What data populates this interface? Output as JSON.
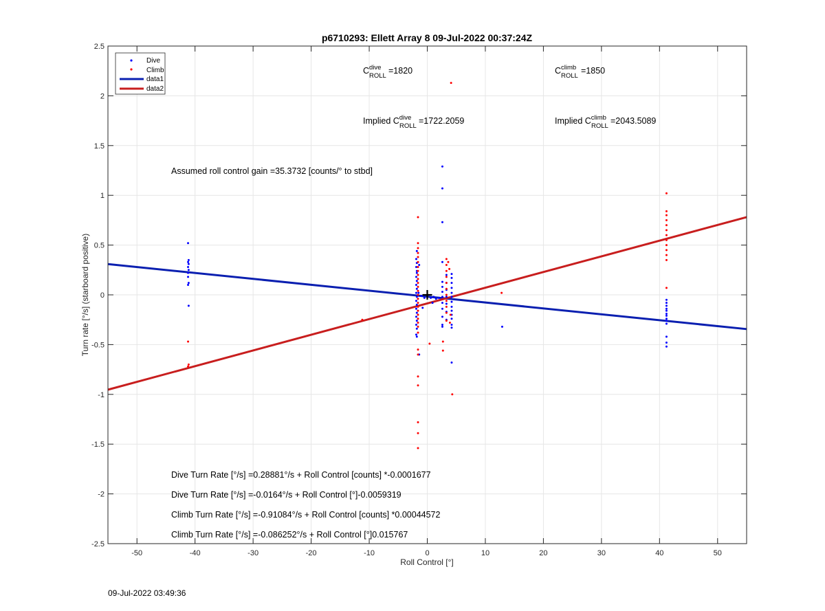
{
  "chart_data": {
    "type": "scatter",
    "title": "p6710293: Ellett Array 8 09-Jul-2022 00:37:24Z",
    "xlabel": "Roll Control [°]",
    "ylabel": "Turn rate [°/s] (starboard positive)",
    "xlim": [
      -55,
      55
    ],
    "ylim": [
      -2.5,
      2.5
    ],
    "xticks": [
      -50,
      -40,
      -30,
      -20,
      -10,
      0,
      10,
      20,
      30,
      40,
      50
    ],
    "yticks": [
      -2.5,
      -2,
      -1.5,
      -1,
      -0.5,
      0,
      0.5,
      1,
      1.5,
      2,
      2.5
    ],
    "grid": true,
    "legend_position": "top-left",
    "legend": [
      {
        "label": "Dive",
        "marker": "dot",
        "color": "#0000ff"
      },
      {
        "label": "Climb",
        "marker": "dot",
        "color": "#ff0000"
      },
      {
        "label": "data1",
        "marker": "line",
        "color": "#0a1fb0"
      },
      {
        "label": "data2",
        "marker": "line",
        "color": "#c81e1e"
      }
    ],
    "series": [
      {
        "name": "Dive",
        "type": "scatter",
        "color": "#0000ff",
        "points": [
          [
            -41.2,
            0.52
          ],
          [
            -41.1,
            0.35
          ],
          [
            -41.2,
            0.33
          ],
          [
            -41.1,
            0.31
          ],
          [
            -41.2,
            0.28
          ],
          [
            -41.1,
            0.25
          ],
          [
            -41.2,
            0.22
          ],
          [
            -41.2,
            0.18
          ],
          [
            -41.1,
            0.12
          ],
          [
            -41.2,
            0.1
          ],
          [
            -41.1,
            -0.11
          ],
          [
            -1.8,
            0.44
          ],
          [
            -1.9,
            0.36
          ],
          [
            -1.8,
            0.32
          ],
          [
            -1.9,
            0.28
          ],
          [
            -1.8,
            0.24
          ],
          [
            -1.8,
            0.22
          ],
          [
            -1.9,
            0.18
          ],
          [
            -1.8,
            0.14
          ],
          [
            -1.9,
            0.1
          ],
          [
            -1.8,
            0.06
          ],
          [
            -1.9,
            0.02
          ],
          [
            -1.8,
            -0.02
          ],
          [
            -1.9,
            -0.06
          ],
          [
            -1.8,
            -0.1
          ],
          [
            -1.9,
            -0.14
          ],
          [
            -1.8,
            -0.18
          ],
          [
            -1.9,
            -0.22
          ],
          [
            -1.8,
            -0.26
          ],
          [
            -1.9,
            -0.3
          ],
          [
            -1.8,
            -0.34
          ],
          [
            -1.9,
            -0.4
          ],
          [
            -1.8,
            -0.42
          ],
          [
            -1.4,
            -0.6
          ],
          [
            -1.4,
            0.3
          ],
          [
            2.6,
            1.29
          ],
          [
            2.6,
            1.07
          ],
          [
            2.6,
            0.73
          ],
          [
            2.6,
            0.33
          ],
          [
            2.6,
            0.13
          ],
          [
            2.6,
            0.08
          ],
          [
            2.6,
            0.03
          ],
          [
            2.6,
            -0.02
          ],
          [
            2.6,
            -0.08
          ],
          [
            2.6,
            -0.14
          ],
          [
            2.6,
            -0.22
          ],
          [
            2.6,
            -0.3
          ],
          [
            2.6,
            -0.32
          ],
          [
            3.3,
            0.2
          ],
          [
            3.3,
            0.12
          ],
          [
            3.3,
            0.05
          ],
          [
            3.3,
            -0.02
          ],
          [
            3.3,
            -0.09
          ],
          [
            3.3,
            -0.17
          ],
          [
            3.3,
            -0.25
          ],
          [
            4.2,
            0.21
          ],
          [
            4.2,
            0.17
          ],
          [
            4.2,
            0.12
          ],
          [
            4.2,
            0.07
          ],
          [
            4.2,
            0.02
          ],
          [
            4.2,
            -0.02
          ],
          [
            4.2,
            -0.07
          ],
          [
            4.2,
            -0.12
          ],
          [
            4.2,
            -0.16
          ],
          [
            4.2,
            -0.2
          ],
          [
            4.2,
            -0.24
          ],
          [
            4.2,
            -0.3
          ],
          [
            4.2,
            -0.33
          ],
          [
            4.2,
            -0.68
          ],
          [
            -1.5,
            0.02
          ],
          [
            -1,
            -0.01
          ],
          [
            -0.5,
            -0.03
          ],
          [
            0.6,
            -0.03
          ],
          [
            1.1,
            -0.02
          ],
          [
            1.5,
            -0.04
          ],
          [
            2,
            -0.03
          ],
          [
            0.9,
            -0.08
          ],
          [
            -0.8,
            -0.13
          ],
          [
            12.9,
            -0.32
          ],
          [
            41.2,
            -0.05
          ],
          [
            41.2,
            -0.08
          ],
          [
            41.2,
            -0.11
          ],
          [
            41.2,
            -0.14
          ],
          [
            41.2,
            -0.16
          ],
          [
            41.2,
            -0.19
          ],
          [
            41.2,
            -0.21
          ],
          [
            41.2,
            -0.24
          ],
          [
            41.2,
            -0.26
          ],
          [
            41.2,
            -0.29
          ],
          [
            41.2,
            -0.42
          ],
          [
            41.2,
            -0.48
          ],
          [
            41.2,
            -0.52
          ]
        ]
      },
      {
        "name": "Climb",
        "type": "scatter",
        "color": "#ff0000",
        "points": [
          [
            -41.2,
            -0.47
          ],
          [
            -41.1,
            -0.7
          ],
          [
            -41.2,
            -0.72
          ],
          [
            -11.2,
            -0.25
          ],
          [
            -1.6,
            0.78
          ],
          [
            -1.6,
            0.52
          ],
          [
            -1.6,
            0.47
          ],
          [
            -1.6,
            0.42
          ],
          [
            -1.6,
            0.38
          ],
          [
            -1.6,
            0.33
          ],
          [
            -1.6,
            0.28
          ],
          [
            -1.6,
            0.24
          ],
          [
            -1.6,
            0.2
          ],
          [
            -1.6,
            0.16
          ],
          [
            -1.6,
            0.12
          ],
          [
            -1.6,
            0.08
          ],
          [
            -1.6,
            0.04
          ],
          [
            -1.6,
            0.0
          ],
          [
            -1.6,
            -0.04
          ],
          [
            -1.6,
            -0.08
          ],
          [
            -1.6,
            -0.12
          ],
          [
            -1.6,
            -0.16
          ],
          [
            -1.6,
            -0.2
          ],
          [
            -1.6,
            -0.24
          ],
          [
            -1.6,
            -0.28
          ],
          [
            -1.6,
            -0.32
          ],
          [
            -1.6,
            -0.38
          ],
          [
            -1.6,
            -0.55
          ],
          [
            -1.6,
            -0.6
          ],
          [
            -1.6,
            -0.82
          ],
          [
            -1.6,
            -0.91
          ],
          [
            -1.6,
            -1.28
          ],
          [
            -1.6,
            -1.39
          ],
          [
            -1.6,
            -1.54
          ],
          [
            0.4,
            -0.49
          ],
          [
            3.3,
            0.36
          ],
          [
            3.3,
            0.3
          ],
          [
            3.3,
            0.24
          ],
          [
            3.3,
            0.18
          ],
          [
            3.3,
            0.12
          ],
          [
            3.3,
            0.06
          ],
          [
            3.3,
            0.0
          ],
          [
            3.3,
            -0.06
          ],
          [
            3.3,
            -0.12
          ],
          [
            3.3,
            -0.18
          ],
          [
            3.3,
            -0.26
          ],
          [
            2.7,
            -0.47
          ],
          [
            2.7,
            -0.56
          ],
          [
            3.6,
            0.33
          ],
          [
            3.8,
            0.26
          ],
          [
            4.0,
            -0.2
          ],
          [
            3.9,
            -0.28
          ],
          [
            4.1,
            2.13
          ],
          [
            4.3,
            -1.0
          ],
          [
            12.8,
            0.02
          ],
          [
            41.2,
            1.02
          ],
          [
            41.2,
            0.84
          ],
          [
            41.2,
            0.8
          ],
          [
            41.2,
            0.75
          ],
          [
            41.2,
            0.7
          ],
          [
            41.2,
            0.65
          ],
          [
            41.2,
            0.6
          ],
          [
            41.2,
            0.55
          ],
          [
            41.2,
            0.5
          ],
          [
            41.2,
            0.45
          ],
          [
            41.2,
            0.4
          ],
          [
            41.2,
            0.35
          ],
          [
            41.2,
            0.07
          ]
        ]
      },
      {
        "name": "data1",
        "type": "line",
        "color": "#0a1fb0",
        "x": [
          -55,
          55
        ],
        "y": [
          0.309,
          -0.344
        ]
      },
      {
        "name": "data2",
        "type": "line",
        "color": "#c81e1e",
        "x": [
          -55,
          55
        ],
        "y": [
          -0.953,
          0.781
        ]
      }
    ],
    "marker_center": {
      "x": 0,
      "y": 0
    },
    "annotations": {
      "c_dive": {
        "base": "C",
        "sup": "dive",
        "sub": "ROLL",
        "value": "=1820"
      },
      "c_climb": {
        "base": "C",
        "sup": "climb",
        "sub": "ROLL",
        "value": "=1850"
      },
      "implied_dive": {
        "prefix": "Implied C",
        "sup": "dive",
        "sub": "ROLL",
        "value": "=1722.2059"
      },
      "implied_climb": {
        "prefix": "Implied C",
        "sup": "climb",
        "sub": "ROLL",
        "value": "=2043.5089"
      },
      "gain": "Assumed roll control gain =35.3732 [counts/° to stbd]",
      "eq1": "Dive Turn Rate [°/s] =0.28881°/s + Roll Control [counts] *-0.0001677",
      "eq2": "Dive Turn Rate [°/s] =-0.0164°/s + Roll Control [°]-0.0059319",
      "eq3": "Climb Turn Rate [°/s] =-0.91084°/s + Roll Control [counts] *0.00044572",
      "eq4": "Climb Turn Rate [°/s] =-0.086252°/s + Roll Control [°]0.015767"
    }
  },
  "footer_timestamp": "09-Jul-2022 03:49:36"
}
